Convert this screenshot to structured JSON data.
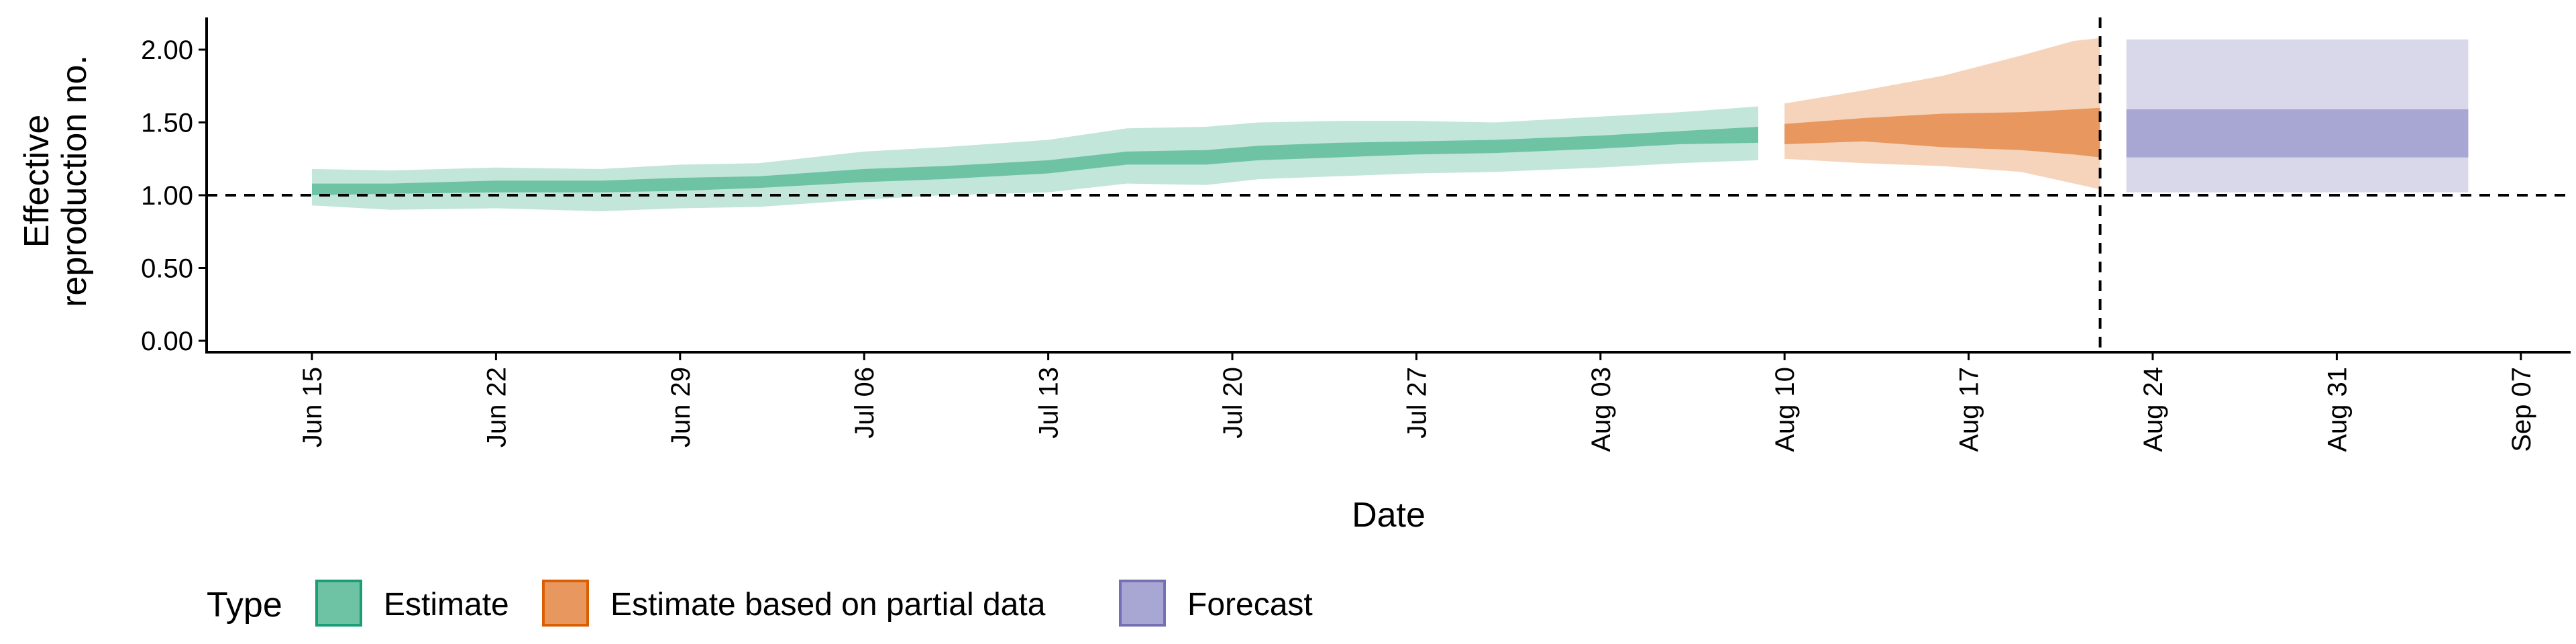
{
  "chart_data": {
    "type": "area",
    "xlabel": "Date",
    "ylabel_lines": [
      "Effective",
      "reproduction no."
    ],
    "ylim": [
      0,
      2.2
    ],
    "xlim": [
      "2020-06-10",
      "2020-09-09"
    ],
    "y_ticks": [
      {
        "value": 0.0,
        "label": "0.00"
      },
      {
        "value": 0.5,
        "label": "0.50"
      },
      {
        "value": 1.0,
        "label": "1.00"
      },
      {
        "value": 1.5,
        "label": "1.50"
      },
      {
        "value": 2.0,
        "label": "2.00"
      }
    ],
    "x_ticks": [
      {
        "date": "2020-06-15",
        "label": "Jun 15"
      },
      {
        "date": "2020-06-22",
        "label": "Jun 22"
      },
      {
        "date": "2020-06-29",
        "label": "Jun 29"
      },
      {
        "date": "2020-07-06",
        "label": "Jul 06"
      },
      {
        "date": "2020-07-13",
        "label": "Jul 13"
      },
      {
        "date": "2020-07-20",
        "label": "Jul 20"
      },
      {
        "date": "2020-07-27",
        "label": "Jul 27"
      },
      {
        "date": "2020-08-03",
        "label": "Aug 03"
      },
      {
        "date": "2020-08-10",
        "label": "Aug 10"
      },
      {
        "date": "2020-08-17",
        "label": "Aug 17"
      },
      {
        "date": "2020-08-24",
        "label": "Aug 24"
      },
      {
        "date": "2020-08-31",
        "label": "Aug 31"
      },
      {
        "date": "2020-09-07",
        "label": "Sep 07"
      }
    ],
    "reference_line_y": 1.0,
    "reference_line_date": "2020-08-22",
    "series": [
      {
        "name": "Estimate",
        "color_outer": "#c3e6da",
        "color_inner": "#6fc3a5",
        "points": [
          {
            "date": "2020-06-15",
            "lo90": 0.93,
            "lo50": 1.0,
            "hi50": 1.08,
            "hi90": 1.18
          },
          {
            "date": "2020-06-18",
            "lo90": 0.9,
            "lo50": 1.01,
            "hi50": 1.08,
            "hi90": 1.17
          },
          {
            "date": "2020-06-22",
            "lo90": 0.91,
            "lo50": 1.02,
            "hi50": 1.1,
            "hi90": 1.19
          },
          {
            "date": "2020-06-26",
            "lo90": 0.89,
            "lo50": 1.02,
            "hi50": 1.1,
            "hi90": 1.18
          },
          {
            "date": "2020-06-29",
            "lo90": 0.91,
            "lo50": 1.03,
            "hi50": 1.12,
            "hi90": 1.21
          },
          {
            "date": "2020-07-02",
            "lo90": 0.92,
            "lo50": 1.05,
            "hi50": 1.13,
            "hi90": 1.22
          },
          {
            "date": "2020-07-06",
            "lo90": 0.97,
            "lo50": 1.09,
            "hi50": 1.18,
            "hi90": 1.3
          },
          {
            "date": "2020-07-09",
            "lo90": 1.0,
            "lo50": 1.11,
            "hi50": 1.2,
            "hi90": 1.33
          },
          {
            "date": "2020-07-13",
            "lo90": 1.02,
            "lo50": 1.15,
            "hi50": 1.24,
            "hi90": 1.38
          },
          {
            "date": "2020-07-16",
            "lo90": 1.08,
            "lo50": 1.21,
            "hi50": 1.3,
            "hi90": 1.46
          },
          {
            "date": "2020-07-19",
            "lo90": 1.07,
            "lo50": 1.21,
            "hi50": 1.31,
            "hi90": 1.47
          },
          {
            "date": "2020-07-21",
            "lo90": 1.11,
            "lo50": 1.24,
            "hi50": 1.34,
            "hi90": 1.5
          },
          {
            "date": "2020-07-24",
            "lo90": 1.13,
            "lo50": 1.26,
            "hi50": 1.36,
            "hi90": 1.51
          },
          {
            "date": "2020-07-27",
            "lo90": 1.15,
            "lo50": 1.28,
            "hi50": 1.37,
            "hi90": 1.51
          },
          {
            "date": "2020-07-30",
            "lo90": 1.16,
            "lo50": 1.29,
            "hi50": 1.38,
            "hi90": 1.5
          },
          {
            "date": "2020-08-03",
            "lo90": 1.19,
            "lo50": 1.32,
            "hi50": 1.41,
            "hi90": 1.54
          },
          {
            "date": "2020-08-06",
            "lo90": 1.22,
            "lo50": 1.35,
            "hi50": 1.44,
            "hi90": 1.57
          },
          {
            "date": "2020-08-09",
            "lo90": 1.24,
            "lo50": 1.36,
            "hi50": 1.47,
            "hi90": 1.61
          }
        ]
      },
      {
        "name": "Estimate based on partial data",
        "color_outer": "#f6d4bb",
        "color_inner": "#e8975e",
        "points": [
          {
            "date": "2020-08-10",
            "lo90": 1.25,
            "lo50": 1.35,
            "hi50": 1.49,
            "hi90": 1.63
          },
          {
            "date": "2020-08-13",
            "lo90": 1.22,
            "lo50": 1.37,
            "hi50": 1.53,
            "hi90": 1.72
          },
          {
            "date": "2020-08-16",
            "lo90": 1.2,
            "lo50": 1.33,
            "hi50": 1.56,
            "hi90": 1.82
          },
          {
            "date": "2020-08-19",
            "lo90": 1.16,
            "lo50": 1.31,
            "hi50": 1.57,
            "hi90": 1.96
          },
          {
            "date": "2020-08-21",
            "lo90": 1.08,
            "lo50": 1.28,
            "hi50": 1.59,
            "hi90": 2.06
          },
          {
            "date": "2020-08-22",
            "lo90": 1.04,
            "lo50": 1.26,
            "hi50": 1.6,
            "hi90": 2.08
          }
        ]
      },
      {
        "name": "Forecast",
        "color_outer": "#d8d8ea",
        "color_inner": "#a8a6d2",
        "points": [
          {
            "date": "2020-08-23",
            "lo90": 1.02,
            "lo50": 1.26,
            "hi50": 1.59,
            "hi90": 2.07
          },
          {
            "date": "2020-09-05",
            "lo90": 1.02,
            "lo50": 1.26,
            "hi50": 1.59,
            "hi90": 2.07
          }
        ]
      }
    ],
    "legend": {
      "title": "Type",
      "position": "bottom-left",
      "items": [
        {
          "label": "Estimate",
          "fill": "#6fc3a5",
          "stroke": "#1b9e77"
        },
        {
          "label": "Estimate based on partial data",
          "fill": "#e8975e",
          "stroke": "#d95f02"
        },
        {
          "label": "Forecast",
          "fill": "#a8a6d2",
          "stroke": "#7570b3"
        }
      ]
    }
  }
}
